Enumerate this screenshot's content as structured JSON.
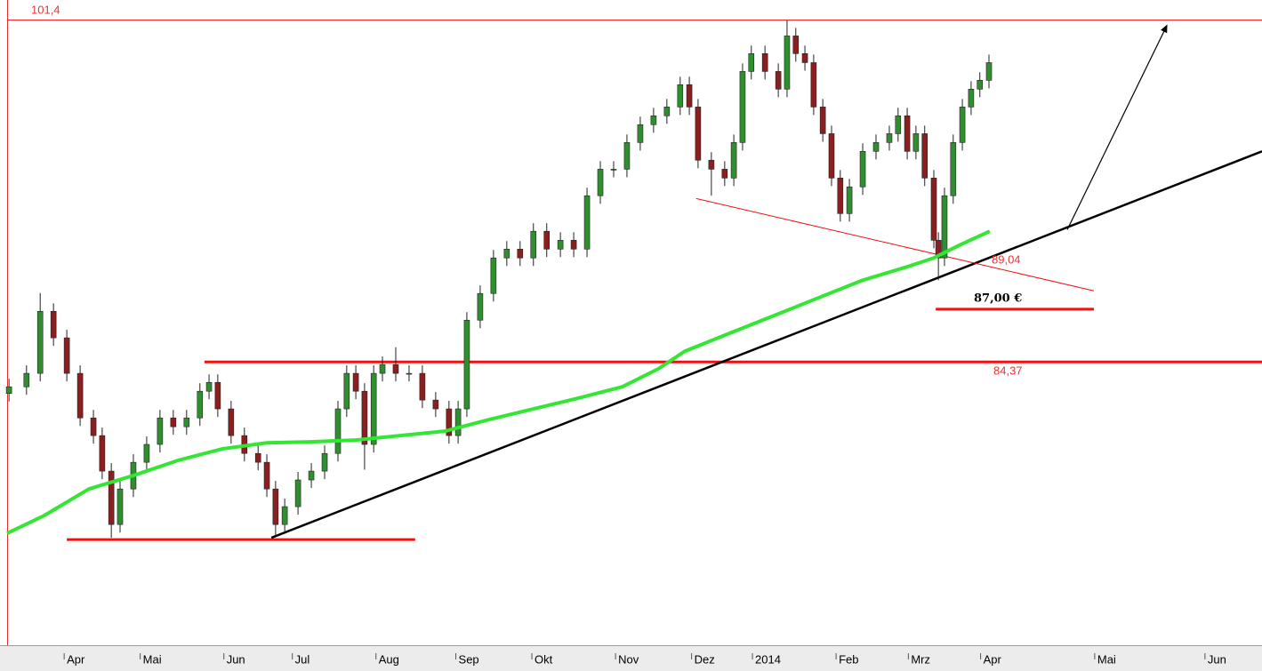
{
  "chart_data": {
    "type": "candlestick",
    "xlim": [
      0,
      330
    ],
    "ylim": [
      70.3,
      102.4
    ],
    "xticks": [
      {
        "value": 15,
        "label": "Apr"
      },
      {
        "value": 35,
        "label": "Mai"
      },
      {
        "value": 57,
        "label": "Jun"
      },
      {
        "value": 75,
        "label": "Jul"
      },
      {
        "value": 97,
        "label": "Aug"
      },
      {
        "value": 118,
        "label": "Sep"
      },
      {
        "value": 138,
        "label": "Okt"
      },
      {
        "value": 160,
        "label": "Nov"
      },
      {
        "value": 180,
        "label": "Dez"
      },
      {
        "value": 196,
        "label": "2014"
      },
      {
        "value": 218,
        "label": "Feb"
      },
      {
        "value": 237,
        "label": "Mrz"
      },
      {
        "value": 256,
        "label": "Apr"
      },
      {
        "value": 286,
        "label": "Mai"
      },
      {
        "value": 315,
        "label": "Jun"
      }
    ],
    "up_color": "#2f8f2f",
    "down_color": "#8b1e1e",
    "x": [
      0.5,
      5.1,
      8.7,
      12.2,
      15.7,
      19.2,
      22.7,
      25.0,
      27.4,
      29.7,
      33.2,
      36.7,
      40.2,
      43.7,
      47.2,
      50.7,
      53.1,
      55.4,
      58.9,
      62.4,
      66.0,
      68.3,
      70.6,
      73.0,
      76.5,
      80.0,
      83.5,
      87.0,
      89.3,
      91.7,
      94.0,
      96.4,
      98.7,
      102.2,
      105.7,
      109.2,
      112.7,
      116.2,
      118.6,
      120.9,
      124.4,
      127.9,
      131.4,
      134.9,
      138.4,
      141.9,
      145.5,
      149.0,
      152.5,
      156.0,
      159.5,
      163.0,
      166.5,
      170.0,
      173.5,
      177.0,
      179.4,
      181.7,
      185.2,
      188.7,
      191.1,
      193.4,
      195.7,
      199.3,
      202.8,
      205.1,
      207.4,
      209.8,
      212.1,
      214.5,
      216.8,
      219.1,
      221.5,
      225.0,
      228.5,
      232.0,
      234.3,
      236.7,
      239.0,
      241.3,
      243.7,
      244.9,
      246.5,
      248.8,
      251.2,
      253.5,
      255.8,
      258.2
    ],
    "open": [
      82.8,
      83.13,
      83.8,
      86.89,
      85.57,
      83.8,
      81.58,
      80.7,
      78.93,
      76.27,
      78.04,
      79.37,
      80.26,
      81.58,
      81.14,
      81.58,
      82.91,
      83.35,
      82.03,
      80.7,
      79.81,
      79.37,
      78.04,
      76.27,
      77.16,
      78.49,
      78.93,
      79.81,
      82.03,
      83.8,
      82.91,
      80.26,
      83.8,
      84.24,
      83.8,
      83.8,
      82.47,
      82.03,
      80.7,
      82.03,
      86.45,
      87.78,
      89.55,
      89.99,
      89.55,
      90.88,
      89.99,
      90.43,
      89.99,
      92.65,
      93.97,
      93.97,
      95.3,
      96.19,
      96.63,
      97.07,
      98.18,
      97.07,
      94.42,
      93.97,
      93.53,
      95.3,
      98.84,
      99.73,
      98.84,
      97.96,
      100.61,
      99.73,
      99.28,
      97.07,
      95.74,
      93.53,
      91.76,
      93.09,
      94.86,
      95.3,
      95.74,
      96.63,
      94.86,
      95.74,
      93.53,
      90.43,
      89.55,
      92.65,
      95.3,
      97.07,
      97.96,
      98.4
    ],
    "high": [
      83.53,
      84.2,
      87.8,
      87.29,
      85.97,
      84.2,
      81.98,
      81.1,
      79.33,
      78.44,
      79.77,
      80.66,
      81.98,
      81.98,
      81.98,
      83.31,
      83.75,
      83.75,
      82.43,
      81.1,
      80.21,
      79.77,
      78.44,
      77.56,
      78.89,
      79.33,
      80.21,
      82.43,
      84.2,
      84.2,
      83.31,
      84.2,
      84.64,
      85.1,
      84.2,
      84.2,
      82.87,
      82.43,
      82.43,
      86.85,
      88.18,
      89.95,
      90.39,
      90.39,
      91.28,
      91.28,
      90.83,
      90.83,
      93.05,
      94.37,
      94.37,
      95.7,
      96.59,
      97.03,
      97.47,
      98.58,
      98.58,
      97.47,
      94.82,
      94.37,
      95.7,
      99.24,
      100.13,
      100.13,
      99.24,
      101.4,
      101.01,
      100.13,
      99.68,
      97.47,
      96.14,
      93.93,
      93.49,
      95.26,
      95.7,
      96.14,
      97.03,
      97.03,
      96.14,
      96.14,
      93.93,
      90.83,
      93.05,
      95.7,
      97.47,
      98.36,
      98.8,
      99.68
    ],
    "low": [
      82.4,
      82.73,
      83.4,
      85.17,
      83.4,
      81.18,
      80.3,
      78.53,
      75.61,
      75.87,
      77.64,
      78.97,
      79.86,
      80.74,
      80.74,
      81.18,
      82.51,
      81.63,
      80.3,
      79.41,
      78.97,
      77.64,
      75.7,
      75.87,
      76.76,
      78.09,
      78.53,
      79.41,
      81.63,
      82.51,
      79.0,
      79.86,
      83.4,
      83.4,
      83.4,
      82.07,
      81.63,
      80.3,
      80.3,
      81.63,
      86.05,
      87.38,
      89.15,
      89.15,
      89.15,
      89.59,
      89.59,
      89.59,
      89.59,
      92.25,
      93.57,
      93.57,
      94.9,
      95.79,
      96.23,
      96.67,
      96.67,
      94.02,
      92.65,
      93.13,
      93.13,
      94.9,
      98.44,
      98.44,
      97.56,
      97.56,
      99.33,
      98.88,
      96.67,
      95.34,
      93.13,
      91.36,
      91.36,
      92.69,
      94.46,
      94.9,
      95.34,
      94.46,
      94.46,
      93.13,
      90.03,
      88.44,
      89.15,
      92.25,
      94.9,
      96.67,
      97.56,
      98.0
    ],
    "close": [
      83.13,
      83.8,
      86.89,
      85.57,
      83.8,
      81.58,
      80.7,
      78.93,
      76.27,
      78.04,
      79.37,
      80.26,
      81.58,
      81.14,
      81.58,
      82.91,
      83.35,
      82.03,
      80.7,
      79.81,
      79.37,
      78.04,
      76.27,
      77.16,
      78.49,
      78.93,
      79.81,
      82.03,
      83.8,
      82.91,
      80.26,
      83.8,
      84.24,
      83.8,
      83.8,
      82.47,
      82.03,
      80.7,
      82.03,
      86.45,
      87.78,
      89.55,
      89.99,
      89.55,
      90.88,
      89.99,
      90.43,
      89.99,
      92.65,
      93.97,
      93.97,
      95.3,
      96.19,
      96.63,
      97.07,
      98.18,
      97.07,
      94.42,
      93.97,
      93.53,
      95.3,
      98.84,
      99.73,
      98.84,
      97.96,
      100.61,
      99.73,
      99.28,
      97.07,
      95.74,
      93.53,
      91.76,
      93.09,
      94.86,
      95.3,
      95.74,
      96.63,
      94.86,
      95.74,
      93.53,
      90.43,
      89.55,
      92.65,
      95.3,
      97.07,
      97.96,
      98.4,
      99.28
    ],
    "moving_average": {
      "color": "#33e633",
      "x": [
        0,
        9.8,
        21.5,
        33.2,
        44.9,
        56.6,
        68.3,
        80.0,
        91.7,
        103.4,
        115.1,
        126.8,
        138.4,
        150.1,
        161.8,
        171.2,
        178.2,
        189.9,
        201.6,
        213.3,
        225.0,
        236.7,
        243.7,
        250.7,
        258.4
      ],
      "values": [
        75.83,
        76.72,
        78.04,
        78.71,
        79.46,
        80.04,
        80.34,
        80.39,
        80.48,
        80.7,
        80.92,
        81.5,
        82.03,
        82.56,
        83.13,
        84.02,
        84.9,
        85.79,
        86.67,
        87.56,
        88.44,
        89.11,
        89.55,
        90.21,
        90.88
      ]
    },
    "trendlines": [
      {
        "kind": "support",
        "color": "#ee1111",
        "x": [
          15.7,
          107.3
        ],
        "values": [
          75.52,
          75.52
        ]
      },
      {
        "kind": "trend",
        "color": "#000000",
        "x": [
          69.5,
          330
        ],
        "values": [
          75.61,
          94.86
        ]
      },
      {
        "kind": "thin",
        "color": "#ee1111",
        "x": [
          181.2,
          285.8
        ],
        "values": [
          92.51,
          87.91
        ]
      },
      {
        "kind": "arrow",
        "color": "#000000",
        "x": [
          278.8,
          305.0
        ],
        "values": [
          90.96,
          101.14
        ]
      }
    ],
    "annotations": [
      {
        "label": "101,4",
        "value": 101.4,
        "x": [
          0,
          330
        ]
      },
      {
        "label": "84,37",
        "value": 84.37,
        "x": [
          51.9,
          330
        ]
      },
      {
        "label": "89,04",
        "value": 89.04
      },
      {
        "label": "87,00 €",
        "value": 87.0,
        "x": [
          244.2,
          285.8
        ]
      }
    ]
  }
}
